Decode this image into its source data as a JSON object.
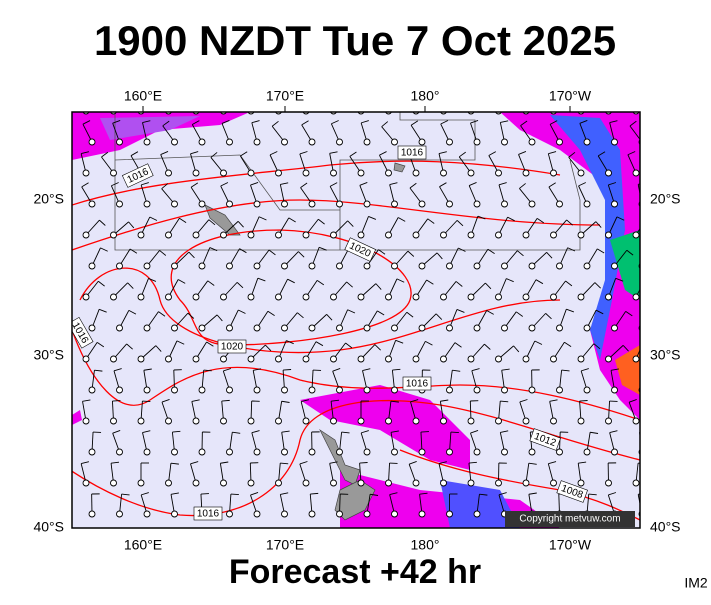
{
  "header": {
    "title": "1900 NZDT Tue 7 Oct 2025"
  },
  "map": {
    "lon_labels": [
      "160°E",
      "170°E",
      "180°",
      "170°W"
    ],
    "lat_labels": [
      "20°S",
      "30°S",
      "40°S"
    ],
    "isobar_labels": [
      "1016",
      "1016",
      "1020",
      "1020",
      "1016",
      "1016",
      "1012",
      "1008",
      "1016"
    ],
    "copyright": "Copyright metvuw.com"
  },
  "footer": {
    "forecast": "Forecast +42 hr",
    "code": "IM2"
  }
}
